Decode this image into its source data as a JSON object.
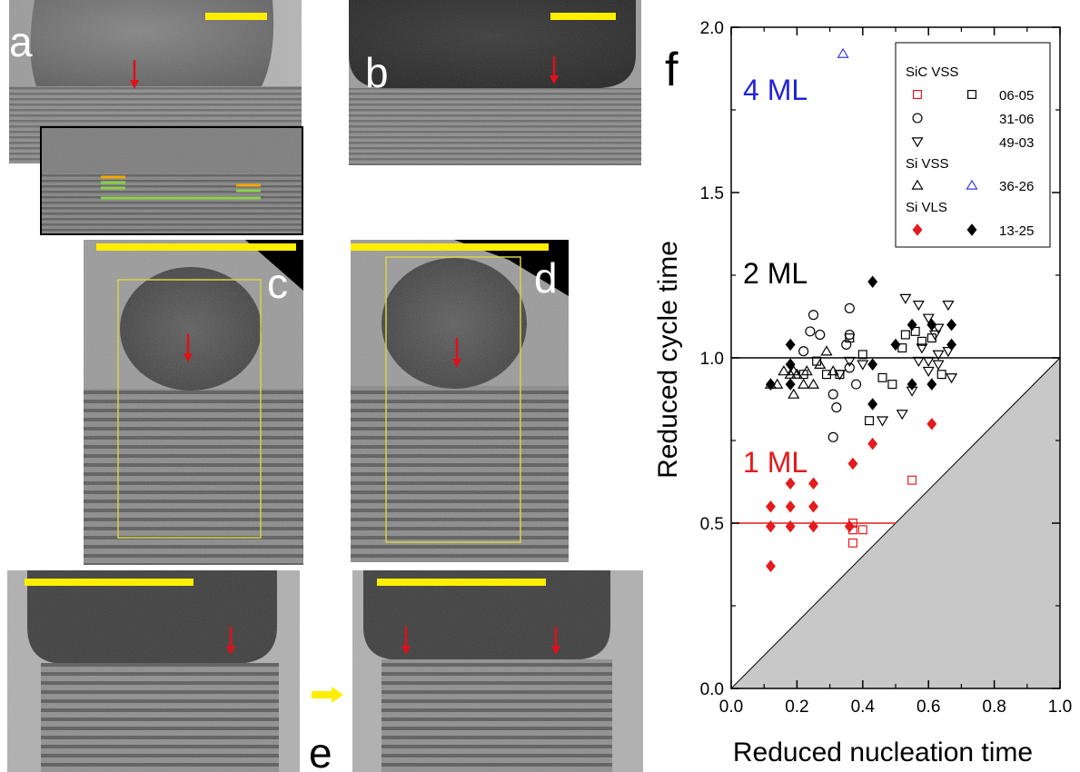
{
  "panels": {
    "a": "a",
    "b": "b",
    "c": "c",
    "d": "d",
    "e": "e",
    "f": "f"
  },
  "annotations": {
    "four_ml": "4 ML",
    "two_ml": "2 ML",
    "one_ml": "1 ML"
  },
  "colors": {
    "scale_bar": "#ffee00",
    "arrow": "#e0101a",
    "orange_line": "#f5a800",
    "green_line": "#8ed04a",
    "roi_box": "#d6d24a",
    "red_marker": "#e41a1c",
    "blue_marker": "#3a3ae0",
    "black_marker": "#000000",
    "shade": "#c8c8c8"
  },
  "chart_data": {
    "type": "scatter",
    "xlabel": "Reduced nucleation time",
    "ylabel": "Reduced cycle time",
    "xlim": [
      0.0,
      1.0
    ],
    "ylim": [
      0.0,
      2.0
    ],
    "xticks": [
      "0.0",
      "0.2",
      "0.4",
      "0.6",
      "0.8",
      "1.0"
    ],
    "yticks": [
      "0.0",
      "0.5",
      "1.0",
      "1.5",
      "2.0"
    ],
    "legend": {
      "position": "top-right",
      "groups": [
        {
          "title": "SiC VSS",
          "rows": [
            {
              "label": "06-05",
              "left": "square-open-red",
              "right": "square-open-black"
            },
            {
              "label": "31-06",
              "left": "circle-open-black",
              "right": ""
            },
            {
              "label": "49-03",
              "left": "triangle-down-open-black",
              "right": ""
            }
          ]
        },
        {
          "title": "Si VSS",
          "rows": [
            {
              "label": "36-26",
              "left": "triangle-up-open-black",
              "right": "triangle-up-open-blue"
            }
          ]
        },
        {
          "title": "Si VLS",
          "rows": [
            {
              "label": "13-25",
              "left": "diamond-filled-red",
              "right": "diamond-filled-black"
            }
          ]
        }
      ]
    },
    "reference_lines": [
      {
        "y": 1.0,
        "x_range": [
          0.0,
          1.0
        ],
        "color": "black"
      },
      {
        "y": 0.5,
        "x_range": [
          0.0,
          0.5
        ],
        "color": "red"
      }
    ],
    "shaded_region": "below the line y = x",
    "series": [
      {
        "marker": "square-open-red",
        "points": [
          [
            0.37,
            0.44
          ],
          [
            0.37,
            0.48
          ],
          [
            0.37,
            0.5
          ],
          [
            0.4,
            0.48
          ],
          [
            0.55,
            0.63
          ]
        ]
      },
      {
        "marker": "square-open-black",
        "points": [
          [
            0.22,
            0.95
          ],
          [
            0.26,
            0.99
          ],
          [
            0.29,
            0.95
          ],
          [
            0.33,
            0.95
          ],
          [
            0.36,
            1.06
          ],
          [
            0.4,
            1.01
          ],
          [
            0.42,
            0.81
          ],
          [
            0.46,
            0.94
          ],
          [
            0.49,
            0.92
          ],
          [
            0.52,
            1.03
          ],
          [
            0.53,
            1.07
          ],
          [
            0.56,
            1.08
          ],
          [
            0.58,
            1.05
          ],
          [
            0.61,
            1.06
          ],
          [
            0.64,
            0.95
          ]
        ]
      },
      {
        "marker": "circle-open-black",
        "points": [
          [
            0.22,
            1.02
          ],
          [
            0.24,
            1.08
          ],
          [
            0.25,
            1.13
          ],
          [
            0.27,
            1.07
          ],
          [
            0.31,
            0.89
          ],
          [
            0.31,
            0.76
          ],
          [
            0.32,
            0.85
          ],
          [
            0.35,
            1.04
          ],
          [
            0.36,
            1.15
          ],
          [
            0.36,
            1.07
          ],
          [
            0.36,
            0.97
          ],
          [
            0.38,
            0.92
          ]
        ]
      },
      {
        "marker": "triangle-down-open-black",
        "points": [
          [
            0.33,
            0.95
          ],
          [
            0.36,
            0.99
          ],
          [
            0.4,
            0.98
          ],
          [
            0.46,
            0.81
          ],
          [
            0.53,
            1.18
          ],
          [
            0.57,
            1.16
          ],
          [
            0.58,
            1.03
          ],
          [
            0.6,
            1.12
          ],
          [
            0.62,
            1.07
          ],
          [
            0.63,
            1.09
          ],
          [
            0.6,
            0.99
          ],
          [
            0.63,
            1.01
          ],
          [
            0.66,
            1.16
          ],
          [
            0.55,
            0.9
          ],
          [
            0.6,
            0.96
          ],
          [
            0.67,
            0.94
          ],
          [
            0.66,
            1.02
          ],
          [
            0.63,
            0.98
          ],
          [
            0.57,
            0.99
          ],
          [
            0.52,
            0.83
          ]
        ]
      },
      {
        "marker": "triangle-up-open-black",
        "points": [
          [
            0.12,
            0.92
          ],
          [
            0.14,
            0.92
          ],
          [
            0.16,
            0.96
          ],
          [
            0.18,
            0.95
          ],
          [
            0.19,
            0.89
          ],
          [
            0.2,
            0.95
          ],
          [
            0.22,
            0.92
          ],
          [
            0.23,
            0.96
          ],
          [
            0.25,
            0.92
          ],
          [
            0.27,
            0.98
          ],
          [
            0.29,
            1.02
          ],
          [
            0.31,
            0.96
          ],
          [
            0.19,
            0.96
          ]
        ]
      },
      {
        "marker": "triangle-up-open-blue",
        "points": [
          [
            0.34,
            1.92
          ]
        ]
      },
      {
        "marker": "diamond-filled-red",
        "points": [
          [
            0.12,
            0.37
          ],
          [
            0.12,
            0.49
          ],
          [
            0.12,
            0.55
          ],
          [
            0.18,
            0.49
          ],
          [
            0.18,
            0.55
          ],
          [
            0.18,
            0.62
          ],
          [
            0.25,
            0.49
          ],
          [
            0.25,
            0.55
          ],
          [
            0.25,
            0.62
          ],
          [
            0.36,
            0.49
          ],
          [
            0.37,
            0.68
          ],
          [
            0.43,
            0.74
          ],
          [
            0.61,
            0.8
          ]
        ]
      },
      {
        "marker": "diamond-filled-black",
        "points": [
          [
            0.12,
            0.92
          ],
          [
            0.18,
            0.92
          ],
          [
            0.18,
            0.98
          ],
          [
            0.18,
            1.04
          ],
          [
            0.43,
            1.23
          ],
          [
            0.43,
            0.98
          ],
          [
            0.43,
            0.86
          ],
          [
            0.5,
            1.04
          ],
          [
            0.55,
            0.92
          ],
          [
            0.55,
            1.1
          ],
          [
            0.61,
            0.92
          ],
          [
            0.61,
            1.1
          ],
          [
            0.67,
            1.1
          ],
          [
            0.67,
            1.04
          ]
        ]
      }
    ]
  }
}
